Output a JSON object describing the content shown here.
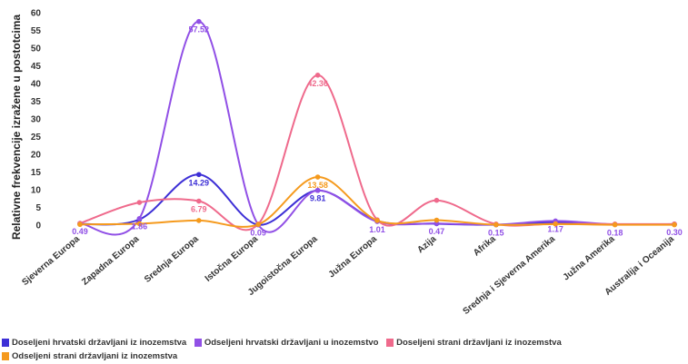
{
  "chart_data": {
    "type": "line",
    "ylabel": "Relativne frekvencije izražene u postotcima",
    "xlabel": "",
    "ylim": [
      0,
      60
    ],
    "yticks": [
      0,
      5,
      10,
      15,
      20,
      25,
      30,
      35,
      40,
      45,
      50,
      55,
      60
    ],
    "grid": false,
    "legend_position": "bottom-left",
    "categories": [
      "Sjeverna Europa",
      "Zapadna Europa",
      "Srednja Europa",
      "Istočna Europa",
      "Jugoistočna Europa",
      "Južna Europa",
      "Azija",
      "Afrika",
      "Srednja i Sjeverna Amerika",
      "Južna Amerika",
      "Australija i Oceanija"
    ],
    "series": [
      {
        "name": "Doseljeni hrvatski državljani iz inozemstva",
        "color": "#3d2fd6",
        "values": [
          0.3,
          1.6,
          14.29,
          0.1,
          9.81,
          1.2,
          0.4,
          0.1,
          0.8,
          0.2,
          0.2
        ]
      },
      {
        "name": "Odseljeni hrvatski državljani u inozemstvo",
        "color": "#9150e6",
        "values": [
          0.49,
          1.86,
          57.52,
          0.09,
          9.81,
          1.01,
          0.47,
          0.15,
          1.17,
          0.18,
          0.3
        ]
      },
      {
        "name": "Doseljeni strani državljani iz inozemstva",
        "color": "#ef6a8c",
        "values": [
          0.5,
          6.4,
          6.79,
          0.3,
          42.36,
          1.5,
          7.0,
          0.3,
          0.4,
          0.3,
          0.3
        ]
      },
      {
        "name": "Odseljeni strani državljani iz inozemstva",
        "color": "#f59a1d",
        "values": [
          0.2,
          0.4,
          1.3,
          0.2,
          13.58,
          1.3,
          1.4,
          0.1,
          0.3,
          0.1,
          0.1
        ]
      }
    ],
    "data_labels": [
      {
        "series": 1,
        "index": 0,
        "text": "0.49"
      },
      {
        "series": 1,
        "index": 1,
        "text": "1.86"
      },
      {
        "series": 1,
        "index": 2,
        "text": "57.52"
      },
      {
        "series": 0,
        "index": 2,
        "text": "14.29"
      },
      {
        "series": 2,
        "index": 2,
        "text": "6.79"
      },
      {
        "series": 1,
        "index": 3,
        "text": "0.09"
      },
      {
        "series": 2,
        "index": 4,
        "text": "42.36"
      },
      {
        "series": 3,
        "index": 4,
        "text": "13.58"
      },
      {
        "series": 0,
        "index": 4,
        "text": "9.81"
      },
      {
        "series": 1,
        "index": 5,
        "text": "1.01"
      },
      {
        "series": 1,
        "index": 6,
        "text": "0.47"
      },
      {
        "series": 1,
        "index": 7,
        "text": "0.15"
      },
      {
        "series": 1,
        "index": 8,
        "text": "1.17"
      },
      {
        "series": 1,
        "index": 9,
        "text": "0.18"
      },
      {
        "series": 1,
        "index": 10,
        "text": "0.30"
      }
    ]
  }
}
